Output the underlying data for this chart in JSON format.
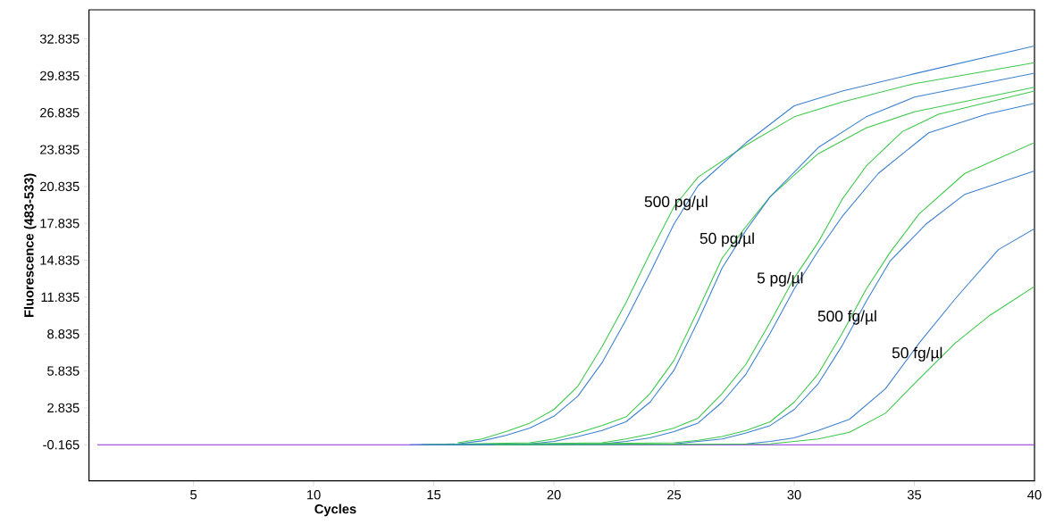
{
  "chart_data": {
    "type": "line",
    "xlabel": "Cycles",
    "ylabel": "Fluorescence (483-533)",
    "xlim": [
      0.65,
      40
    ],
    "ylim": [
      -3.1,
      35.2
    ],
    "xticks": [
      5,
      10,
      15,
      20,
      25,
      30,
      35,
      40
    ],
    "yticks": [
      -0.165,
      2.835,
      5.835,
      8.835,
      11.835,
      14.835,
      17.835,
      20.835,
      23.835,
      26.835,
      29.835,
      32.835
    ],
    "grid": false,
    "marker": "none",
    "line_style": "solid",
    "series": [
      {
        "color": "#8a2be2",
        "x": [
          1,
          40
        ],
        "values": [
          -0.17,
          -0.17
        ]
      },
      {
        "color": "#3cc84a",
        "x": [
          16,
          17,
          18,
          19,
          20,
          21,
          22,
          23,
          24,
          25,
          26,
          28,
          30,
          32,
          35,
          40
        ],
        "values": [
          0.0,
          0.3,
          0.9,
          1.6,
          2.7,
          4.6,
          7.8,
          11.4,
          15.4,
          19.2,
          21.6,
          24.2,
          26.5,
          27.7,
          29.2,
          30.9
        ]
      },
      {
        "color": "#3a7fd0",
        "x": [
          14,
          16,
          17,
          18,
          19,
          20,
          21,
          22,
          23,
          24,
          25,
          26,
          28,
          30,
          32,
          35,
          40
        ],
        "values": [
          -0.17,
          -0.1,
          0.15,
          0.6,
          1.2,
          2.15,
          3.8,
          6.5,
          10.0,
          13.8,
          17.8,
          20.9,
          24.4,
          27.4,
          28.6,
          30.0,
          32.26
        ]
      },
      {
        "color": "#3cc84a",
        "x": [
          14.5,
          19,
          20,
          21,
          22,
          23,
          24,
          25,
          26,
          27,
          28,
          29,
          31,
          33,
          35,
          40
        ],
        "values": [
          -0.17,
          0.0,
          0.3,
          0.8,
          1.4,
          2.1,
          4.0,
          6.7,
          10.8,
          15.0,
          17.6,
          20.0,
          23.5,
          25.6,
          26.9,
          28.9
        ]
      },
      {
        "color": "#3a7fd0",
        "x": [
          14.5,
          19,
          20,
          21,
          22,
          23,
          24,
          25,
          26,
          27,
          28,
          29,
          31,
          33,
          35,
          40
        ],
        "values": [
          -0.17,
          -0.1,
          0.1,
          0.5,
          1.0,
          1.7,
          3.3,
          5.9,
          9.9,
          14.2,
          17.3,
          20.0,
          24.0,
          26.5,
          28.1,
          30.05
        ]
      },
      {
        "color": "#3cc84a",
        "x": [
          15.5,
          22,
          23,
          24,
          25,
          26,
          27,
          28,
          29,
          30,
          31,
          32,
          33,
          34.5,
          36,
          40
        ],
        "values": [
          -0.17,
          0.0,
          0.3,
          0.7,
          1.2,
          2.0,
          4.0,
          6.4,
          9.8,
          13.4,
          16.3,
          19.8,
          22.5,
          25.3,
          26.7,
          28.6
        ]
      },
      {
        "color": "#3a7fd0",
        "x": [
          15.5,
          22,
          23,
          24,
          25,
          26,
          27,
          28,
          29,
          30,
          31,
          32,
          33.5,
          35.6,
          38,
          40
        ],
        "values": [
          -0.17,
          -0.1,
          0.1,
          0.4,
          0.9,
          1.6,
          3.3,
          5.6,
          8.9,
          12.5,
          15.6,
          18.4,
          21.9,
          25.2,
          26.7,
          27.6
        ]
      },
      {
        "color": "#3cc84a",
        "x": [
          16.5,
          25,
          26,
          27,
          28,
          29,
          30,
          31,
          32,
          33,
          34,
          35.2,
          37.1,
          40
        ],
        "values": [
          -0.17,
          0.0,
          0.2,
          0.5,
          1.0,
          1.7,
          3.3,
          5.6,
          8.9,
          12.5,
          15.5,
          18.6,
          21.9,
          24.4
        ]
      },
      {
        "color": "#3a7fd0",
        "x": [
          16.5,
          25,
          26,
          27,
          28,
          29,
          30,
          31,
          32,
          33,
          34,
          35.5,
          37.1,
          40
        ],
        "values": [
          -0.17,
          -0.1,
          0.1,
          0.3,
          0.8,
          1.4,
          2.7,
          4.8,
          7.9,
          11.5,
          14.8,
          17.8,
          20.2,
          22.1
        ]
      },
      {
        "color": "#3a7fd0",
        "x": [
          17.5,
          28,
          29,
          30,
          31,
          32.3,
          33.8,
          35.2,
          36.7,
          38.5,
          40
        ],
        "values": [
          -0.17,
          -0.1,
          0.1,
          0.4,
          1.0,
          1.9,
          4.4,
          8.1,
          11.7,
          15.7,
          17.4
        ]
      },
      {
        "color": "#3cc84a",
        "x": [
          17.5,
          29,
          30,
          31,
          32.3,
          33.8,
          35.2,
          36.7,
          38.1,
          40
        ],
        "values": [
          -0.17,
          -0.1,
          0.1,
          0.3,
          0.85,
          2.4,
          5.2,
          8.1,
          10.3,
          12.7
        ]
      }
    ],
    "annotations": [
      "500 pg/µl",
      "50 pg/µl",
      "5 pg/µl",
      "500 fg/µl",
      "50 fg/µl"
    ]
  }
}
